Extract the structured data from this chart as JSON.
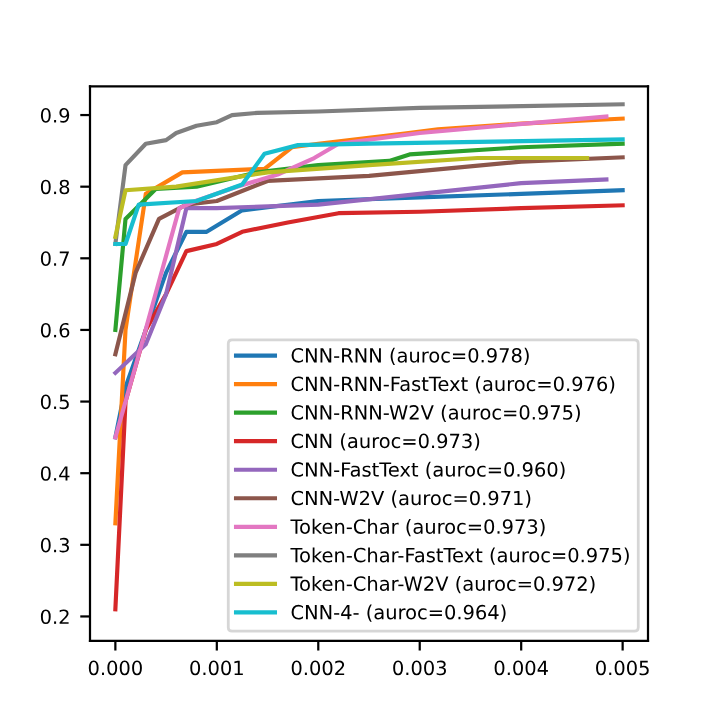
{
  "chart_data": {
    "type": "line",
    "xlim": [
      -0.00025,
      0.00525
    ],
    "ylim": [
      0.166,
      0.94
    ],
    "xticks": [
      {
        "value": 0,
        "label": "0.000"
      },
      {
        "value": 0.001,
        "label": "0.001"
      },
      {
        "value": 0.002,
        "label": "0.002"
      },
      {
        "value": 0.003,
        "label": "0.003"
      },
      {
        "value": 0.004,
        "label": "0.004"
      },
      {
        "value": 0.005,
        "label": "0.005"
      }
    ],
    "yticks": [
      0.2,
      0.3,
      0.4,
      0.5,
      0.6,
      0.7,
      0.8,
      0.9
    ],
    "legend": "bottom right",
    "grid": false,
    "series": [
      {
        "name": "CNN-RNN (auroc=0.978)",
        "color": "#1f77b4",
        "x": [
          0,
          0.0001,
          0.0005,
          0.0007,
          0.0009,
          0.00125,
          0.002,
          0.003,
          0.004,
          0.005
        ],
        "values": [
          0.45,
          0.52,
          0.68,
          0.737,
          0.737,
          0.767,
          0.78,
          0.785,
          0.79,
          0.795
        ]
      },
      {
        "name": "CNN-RNN-FastText (auroc=0.976)",
        "color": "#ff7f0e",
        "x": [
          0,
          0.0001,
          0.0003,
          0.00066,
          0.00147,
          0.00174,
          0.002,
          0.00285,
          0.00318,
          0.004,
          0.005
        ],
        "values": [
          0.33,
          0.6,
          0.79,
          0.82,
          0.825,
          0.855,
          0.86,
          0.874,
          0.88,
          0.888,
          0.895
        ]
      },
      {
        "name": "CNN-RNN-W2V (auroc=0.975)",
        "color": "#2ca02c",
        "x": [
          0,
          0.0001,
          0.0004,
          0.0008,
          0.0014,
          0.002,
          0.0027,
          0.0029,
          0.004,
          0.005
        ],
        "values": [
          0.6,
          0.755,
          0.797,
          0.8,
          0.82,
          0.83,
          0.836,
          0.845,
          0.855,
          0.86
        ]
      },
      {
        "name": "CNN (auroc=0.973)",
        "color": "#d62728",
        "x": [
          0,
          0.0001,
          0.0003,
          0.0005,
          0.0007,
          0.001,
          0.00125,
          0.0017,
          0.0022,
          0.003,
          0.004,
          0.005
        ],
        "values": [
          0.21,
          0.5,
          0.6,
          0.65,
          0.71,
          0.72,
          0.737,
          0.75,
          0.763,
          0.765,
          0.77,
          0.774
        ]
      },
      {
        "name": "CNN-FastText (auroc=0.960)",
        "color": "#9467bd",
        "x": [
          0,
          0.0003,
          0.0005,
          0.0007,
          0.001,
          0.002,
          0.003,
          0.004,
          0.00484
        ],
        "values": [
          0.54,
          0.58,
          0.65,
          0.77,
          0.77,
          0.775,
          0.79,
          0.805,
          0.81
        ]
      },
      {
        "name": "CNN-W2V (auroc=0.971)",
        "color": "#8c564b",
        "x": [
          0,
          0.0002,
          0.00043,
          0.0007,
          0.001,
          0.0015,
          0.0025,
          0.004,
          0.005
        ],
        "values": [
          0.566,
          0.68,
          0.755,
          0.775,
          0.78,
          0.808,
          0.815,
          0.835,
          0.841
        ]
      },
      {
        "name": "Token-Char (auroc=0.973)",
        "color": "#e377c2",
        "x": [
          0,
          0.0002,
          0.00063,
          0.00079,
          0.0012,
          0.0016,
          0.00196,
          0.0022,
          0.003,
          0.00484
        ],
        "values": [
          0.45,
          0.55,
          0.77,
          0.78,
          0.8,
          0.817,
          0.84,
          0.86,
          0.875,
          0.898
        ]
      },
      {
        "name": "Token-Char-FastText (auroc=0.975)",
        "color": "#7f7f7f",
        "x": [
          0,
          0.0001,
          0.0003,
          0.0005,
          0.0006,
          0.0008,
          0.001,
          0.00115,
          0.0014,
          0.002,
          0.003,
          0.005
        ],
        "values": [
          0.72,
          0.83,
          0.86,
          0.865,
          0.875,
          0.885,
          0.89,
          0.9,
          0.903,
          0.905,
          0.91,
          0.915
        ]
      },
      {
        "name": "Token-Char-W2V (auroc=0.972)",
        "color": "#bcbd22",
        "x": [
          0,
          0.0001,
          0.0006,
          0.0015,
          0.0025,
          0.00357,
          0.00465
        ],
        "values": [
          0.73,
          0.795,
          0.8,
          0.82,
          0.83,
          0.84,
          0.84
        ]
      },
      {
        "name": "CNN-4- (auroc=0.964)",
        "color": "#17becf",
        "x": [
          0,
          0.0001,
          0.00023,
          0.0008,
          0.00125,
          0.00147,
          0.0018,
          0.0025,
          0.005
        ],
        "values": [
          0.72,
          0.72,
          0.775,
          0.78,
          0.803,
          0.846,
          0.858,
          0.86,
          0.866
        ]
      }
    ]
  }
}
